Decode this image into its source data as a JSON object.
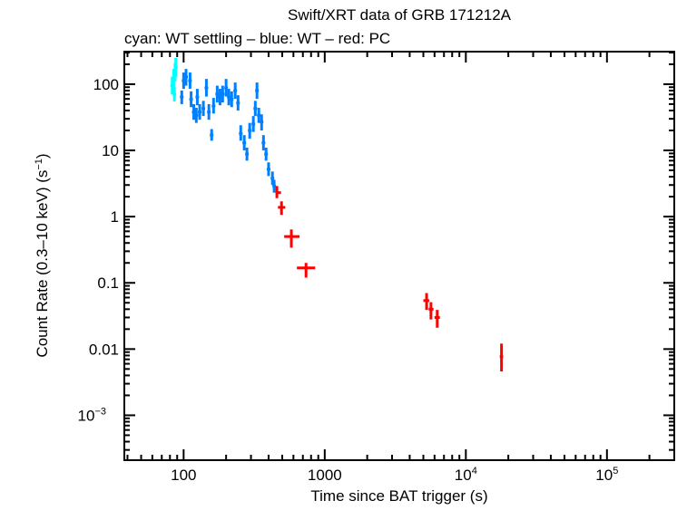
{
  "chart_data": {
    "type": "scatter",
    "title": "Swift/XRT data of GRB 171212A",
    "subtitle": "cyan: WT settling – blue: WT – red: PC",
    "xlabel": "Time since BAT trigger (s)",
    "ylabel": "Count Rate (0.3–10 keV) (s",
    "ylabel_sup": "−1",
    "ylabel_end": ")",
    "x_scale": "log",
    "y_scale": "log",
    "xlim": [
      38,
      300000
    ],
    "ylim": [
      0.00021,
      310
    ],
    "grid": false,
    "x_ticks": [
      {
        "value": 100,
        "label": "100"
      },
      {
        "value": 1000,
        "label": "1000"
      },
      {
        "value": 10000,
        "label": "10",
        "sup": "4"
      },
      {
        "value": 100000,
        "label": "10",
        "sup": "5"
      }
    ],
    "y_ticks": [
      {
        "value": 100,
        "label": "100"
      },
      {
        "value": 10,
        "label": "10"
      },
      {
        "value": 1,
        "label": "1"
      },
      {
        "value": 0.1,
        "label": "0.1"
      },
      {
        "value": 0.01,
        "label": "0.01"
      },
      {
        "value": 0.001,
        "label": "10",
        "sup": "−3"
      }
    ],
    "series": [
      {
        "name": "WT settling",
        "color": "#00ffff",
        "points": [
          [
            83,
            95,
            70,
            130
          ],
          [
            85,
            120,
            85,
            170
          ],
          [
            87,
            150,
            110,
            210
          ],
          [
            88,
            180,
            130,
            250
          ],
          [
            86,
            70,
            55,
            90
          ]
        ]
      },
      {
        "name": "WT",
        "color": "#0080ff",
        "points": [
          [
            97,
            64,
            50,
            80
          ],
          [
            100,
            113,
            85,
            150
          ],
          [
            104,
            129,
            95,
            170
          ],
          [
            111,
            113,
            85,
            150
          ],
          [
            113,
            59,
            45,
            78
          ],
          [
            118,
            38,
            29,
            50
          ],
          [
            123,
            34,
            26,
            44
          ],
          [
            125,
            64,
            48,
            85
          ],
          [
            130,
            38,
            29,
            50
          ],
          [
            138,
            43,
            33,
            56
          ],
          [
            145,
            88,
            65,
            120
          ],
          [
            151,
            38,
            29,
            50
          ],
          [
            158,
            17,
            14,
            21
          ],
          [
            163,
            47,
            36,
            62
          ],
          [
            173,
            71,
            53,
            95
          ],
          [
            181,
            64,
            48,
            85
          ],
          [
            189,
            71,
            53,
            95
          ],
          [
            200,
            88,
            65,
            120
          ],
          [
            209,
            64,
            48,
            85
          ],
          [
            219,
            59,
            45,
            78
          ],
          [
            232,
            80,
            60,
            106
          ],
          [
            243,
            52,
            40,
            68
          ],
          [
            254,
            18,
            14,
            24
          ],
          [
            269,
            13,
            10,
            17
          ],
          [
            281,
            8.8,
            7,
            11
          ],
          [
            294,
            20,
            15,
            26
          ],
          [
            312,
            25,
            19,
            33
          ],
          [
            322,
            43,
            33,
            56
          ],
          [
            331,
            80,
            60,
            106
          ],
          [
            341,
            34,
            26,
            44
          ],
          [
            357,
            27,
            20,
            35
          ],
          [
            368,
            13,
            10,
            17
          ],
          [
            384,
            8.8,
            7,
            11
          ],
          [
            400,
            5.2,
            4.1,
            6.6
          ],
          [
            426,
            3.8,
            3.0,
            4.8
          ],
          [
            438,
            2.9,
            2.3,
            3.6
          ]
        ]
      },
      {
        "name": "PC",
        "color": "#ff0000",
        "points": [
          [
            458,
            2.3,
            1.9,
            2.9,
            449,
            490
          ],
          [
            494,
            1.38,
            1.06,
            1.7,
            466,
            525
          ],
          [
            580,
            0.5,
            0.34,
            0.64,
            516,
            663
          ],
          [
            737,
            0.168,
            0.12,
            0.2,
            635,
            855
          ],
          [
            5270,
            0.054,
            0.039,
            0.07,
            5000,
            5500
          ],
          [
            5660,
            0.04,
            0.028,
            0.051,
            5450,
            5900
          ],
          [
            6270,
            0.03,
            0.021,
            0.039,
            6000,
            6550
          ],
          [
            17900,
            0.0077,
            0.0046,
            0.0121,
            17400,
            18400
          ]
        ]
      }
    ]
  }
}
